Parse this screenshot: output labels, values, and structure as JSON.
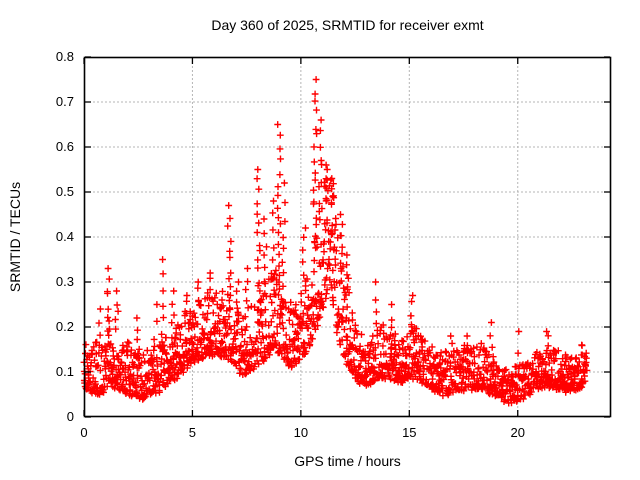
{
  "title": "Day 360 of 2025, SRMTID for receiver exmt",
  "colors": {
    "marker": "#ff0000",
    "grid": "#b5b5b5",
    "border": "#000000",
    "text": "#000000",
    "background": "#ffffff"
  },
  "chart_data": {
    "type": "scatter",
    "title": "Day 360 of 2025, SRMTID for receiver exmt",
    "xlabel": "GPS time / hours",
    "ylabel": "SRMTID / TECUs",
    "xlim": [
      0,
      24.3
    ],
    "ylim": [
      0,
      0.8
    ],
    "xticks": [
      0,
      5,
      10,
      15,
      20
    ],
    "xtick_labels": [
      "0",
      "5",
      "10",
      "15",
      "20"
    ],
    "yticks": [
      0,
      0.1,
      0.2,
      0.3,
      0.4,
      0.5,
      0.6,
      0.7,
      0.8
    ],
    "ytick_labels": [
      "0",
      "0.1",
      "0.2",
      "0.3",
      "0.4",
      "0.5",
      "0.6",
      "0.7",
      "0.8"
    ],
    "grid": true,
    "grid_style": "dashed",
    "legend": "none",
    "marker": "plus",
    "series_name": "SRMTID",
    "sample_interval_hours": 0.016667,
    "data_start_hour": 0.0,
    "data_end_hour": 23.2,
    "observed_max": {
      "hour": 10.65,
      "value": 0.75
    },
    "baseline_level": 0.1,
    "envelope_format": [
      "hour",
      "band_low_TECUs",
      "band_high_TECUs"
    ],
    "envelope": [
      [
        0.0,
        0.06,
        0.16
      ],
      [
        0.7,
        0.05,
        0.17
      ],
      [
        1.2,
        0.07,
        0.2
      ],
      [
        1.8,
        0.06,
        0.18
      ],
      [
        2.5,
        0.04,
        0.15
      ],
      [
        3.2,
        0.05,
        0.16
      ],
      [
        3.8,
        0.07,
        0.18
      ],
      [
        4.5,
        0.1,
        0.22
      ],
      [
        5.2,
        0.13,
        0.25
      ],
      [
        6.0,
        0.14,
        0.28
      ],
      [
        6.7,
        0.13,
        0.27
      ],
      [
        7.3,
        0.09,
        0.22
      ],
      [
        7.8,
        0.11,
        0.26
      ],
      [
        8.3,
        0.13,
        0.3
      ],
      [
        8.9,
        0.15,
        0.33
      ],
      [
        9.4,
        0.11,
        0.25
      ],
      [
        10.0,
        0.13,
        0.28
      ],
      [
        10.5,
        0.17,
        0.35
      ],
      [
        11.0,
        0.24,
        0.48
      ],
      [
        11.35,
        0.3,
        0.52
      ],
      [
        11.7,
        0.18,
        0.42
      ],
      [
        12.1,
        0.12,
        0.3
      ],
      [
        12.6,
        0.08,
        0.2
      ],
      [
        13.1,
        0.07,
        0.17
      ],
      [
        13.6,
        0.09,
        0.22
      ],
      [
        14.1,
        0.08,
        0.19
      ],
      [
        14.7,
        0.08,
        0.18
      ],
      [
        15.2,
        0.09,
        0.21
      ],
      [
        15.8,
        0.07,
        0.17
      ],
      [
        16.5,
        0.05,
        0.14
      ],
      [
        17.2,
        0.06,
        0.15
      ],
      [
        17.8,
        0.06,
        0.16
      ],
      [
        18.4,
        0.06,
        0.16
      ],
      [
        19.0,
        0.05,
        0.13
      ],
      [
        19.6,
        0.03,
        0.11
      ],
      [
        20.2,
        0.04,
        0.12
      ],
      [
        20.8,
        0.06,
        0.14
      ],
      [
        21.4,
        0.07,
        0.16
      ],
      [
        22.0,
        0.06,
        0.14
      ],
      [
        22.6,
        0.06,
        0.13
      ],
      [
        23.2,
        0.08,
        0.16
      ]
    ],
    "peaks_format": [
      "hour",
      "peak_value_TECUs",
      "marker_count"
    ],
    "peaks": [
      [
        0.7,
        0.24,
        3
      ],
      [
        1.1,
        0.33,
        8
      ],
      [
        1.5,
        0.28,
        5
      ],
      [
        2.4,
        0.22,
        3
      ],
      [
        3.3,
        0.25,
        3
      ],
      [
        3.6,
        0.35,
        6
      ],
      [
        4.1,
        0.28,
        4
      ],
      [
        4.7,
        0.27,
        4
      ],
      [
        5.3,
        0.3,
        4
      ],
      [
        5.75,
        0.32,
        5
      ],
      [
        6.7,
        0.47,
        10
      ],
      [
        7.1,
        0.3,
        4
      ],
      [
        7.5,
        0.33,
        5
      ],
      [
        8.05,
        0.55,
        14
      ],
      [
        8.35,
        0.44,
        6
      ],
      [
        8.75,
        0.48,
        6
      ],
      [
        9.0,
        0.65,
        16
      ],
      [
        9.2,
        0.52,
        8
      ],
      [
        10.15,
        0.42,
        6
      ],
      [
        10.65,
        0.75,
        18
      ],
      [
        10.9,
        0.66,
        10
      ],
      [
        11.15,
        0.56,
        10
      ],
      [
        11.45,
        0.53,
        8
      ],
      [
        11.85,
        0.45,
        6
      ],
      [
        12.15,
        0.36,
        5
      ],
      [
        13.45,
        0.3,
        4
      ],
      [
        14.25,
        0.25,
        3
      ],
      [
        15.1,
        0.27,
        5
      ],
      [
        16.9,
        0.18,
        2
      ],
      [
        17.6,
        0.18,
        2
      ],
      [
        18.8,
        0.21,
        3
      ],
      [
        20.0,
        0.19,
        2
      ],
      [
        21.4,
        0.19,
        3
      ],
      [
        23.0,
        0.16,
        2
      ]
    ]
  }
}
